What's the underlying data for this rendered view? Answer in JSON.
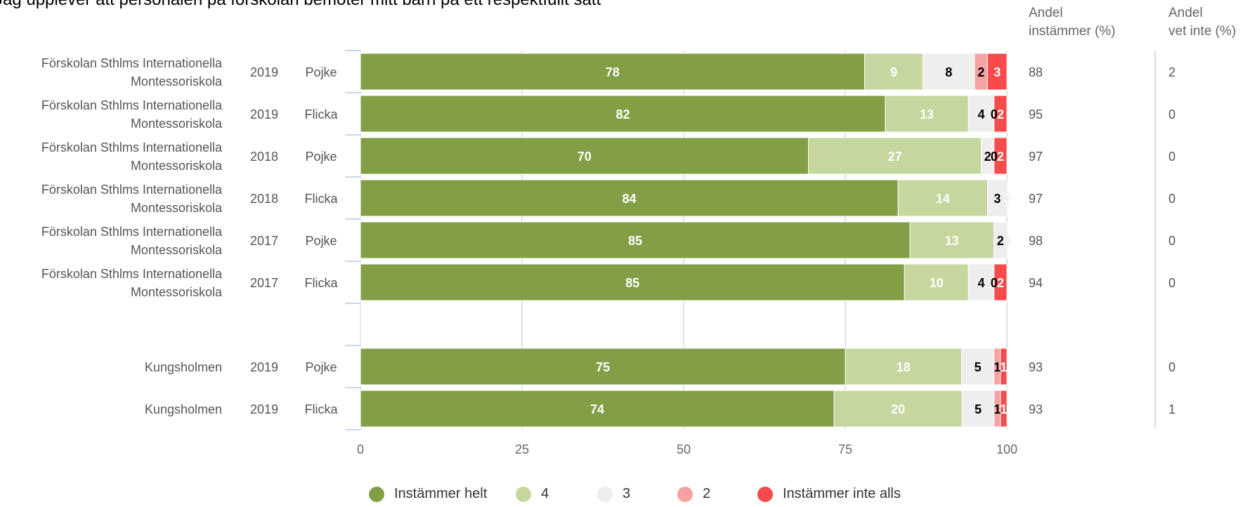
{
  "title": "Jag upplever att personalen på förskolan bemöter mitt barn på ett respektfullt sätt",
  "headers": {
    "agree_line1": "Andel",
    "agree_line2": "instämmer (%)",
    "dontknow_line1": "Andel",
    "dontknow_line2": "vet inte (%)"
  },
  "chart_data": {
    "type": "bar",
    "orientation": "horizontal",
    "stacked": true,
    "xlim": [
      0,
      100
    ],
    "x_ticks": [
      "0",
      "25",
      "50",
      "75",
      "100"
    ],
    "series_names": [
      "Instämmer helt",
      "4",
      "3",
      "2",
      "Instämmer inte alls"
    ],
    "colors": [
      "#829f46",
      "#c5d79f",
      "#eeeeee",
      "#f7a2a2",
      "#f74a4a"
    ],
    "label_colors": [
      "#ffffff",
      "#ffffff",
      "#000000",
      "#000000",
      "#ffffff"
    ],
    "rows": [
      {
        "school_line1": "Förskolan Sthlms Internationella",
        "school_line2": "Montessoriskola",
        "year": "2019",
        "gender": "Pojke",
        "values": [
          78,
          9,
          8,
          2,
          3
        ],
        "agree": "88",
        "dontknow": "2"
      },
      {
        "school_line1": "Förskolan Sthlms Internationella",
        "school_line2": "Montessoriskola",
        "year": "2019",
        "gender": "Flicka",
        "values": [
          82,
          13,
          4,
          0,
          2
        ],
        "agree": "95",
        "dontknow": "0"
      },
      {
        "school_line1": "Förskolan Sthlms Internationella",
        "school_line2": "Montessoriskola",
        "year": "2018",
        "gender": "Pojke",
        "values": [
          70,
          27,
          2,
          0,
          2
        ],
        "agree": "97",
        "dontknow": "0"
      },
      {
        "school_line1": "Förskolan Sthlms Internationella",
        "school_line2": "Montessoriskola",
        "year": "2018",
        "gender": "Flicka",
        "values": [
          84,
          14,
          3,
          0,
          0
        ],
        "agree": "97",
        "dontknow": "0"
      },
      {
        "school_line1": "Förskolan Sthlms Internationella",
        "school_line2": "Montessoriskola",
        "year": "2017",
        "gender": "Pojke",
        "values": [
          85,
          13,
          2,
          0,
          0
        ],
        "agree": "98",
        "dontknow": "0"
      },
      {
        "school_line1": "Förskolan Sthlms Internationella",
        "school_line2": "Montessoriskola",
        "year": "2017",
        "gender": "Flicka",
        "values": [
          85,
          10,
          4,
          0,
          2
        ],
        "agree": "94",
        "dontknow": "0"
      },
      {
        "blank": true
      },
      {
        "school_line1": "Kungsholmen",
        "school_line2": "",
        "year": "2019",
        "gender": "Pojke",
        "values": [
          75,
          18,
          5,
          1,
          1
        ],
        "agree": "93",
        "dontknow": "0"
      },
      {
        "school_line1": "Kungsholmen",
        "school_line2": "",
        "year": "2019",
        "gender": "Flicka",
        "values": [
          74,
          20,
          5,
          1,
          1
        ],
        "agree": "93",
        "dontknow": "1"
      }
    ]
  },
  "legend": [
    {
      "label": "Instämmer helt",
      "color": "#829f46"
    },
    {
      "label": "4",
      "color": "#c5d79f"
    },
    {
      "label": "3",
      "color": "#eeeeee"
    },
    {
      "label": "2",
      "color": "#f7a2a2"
    },
    {
      "label": "Instämmer inte alls",
      "color": "#f74a4a"
    }
  ]
}
